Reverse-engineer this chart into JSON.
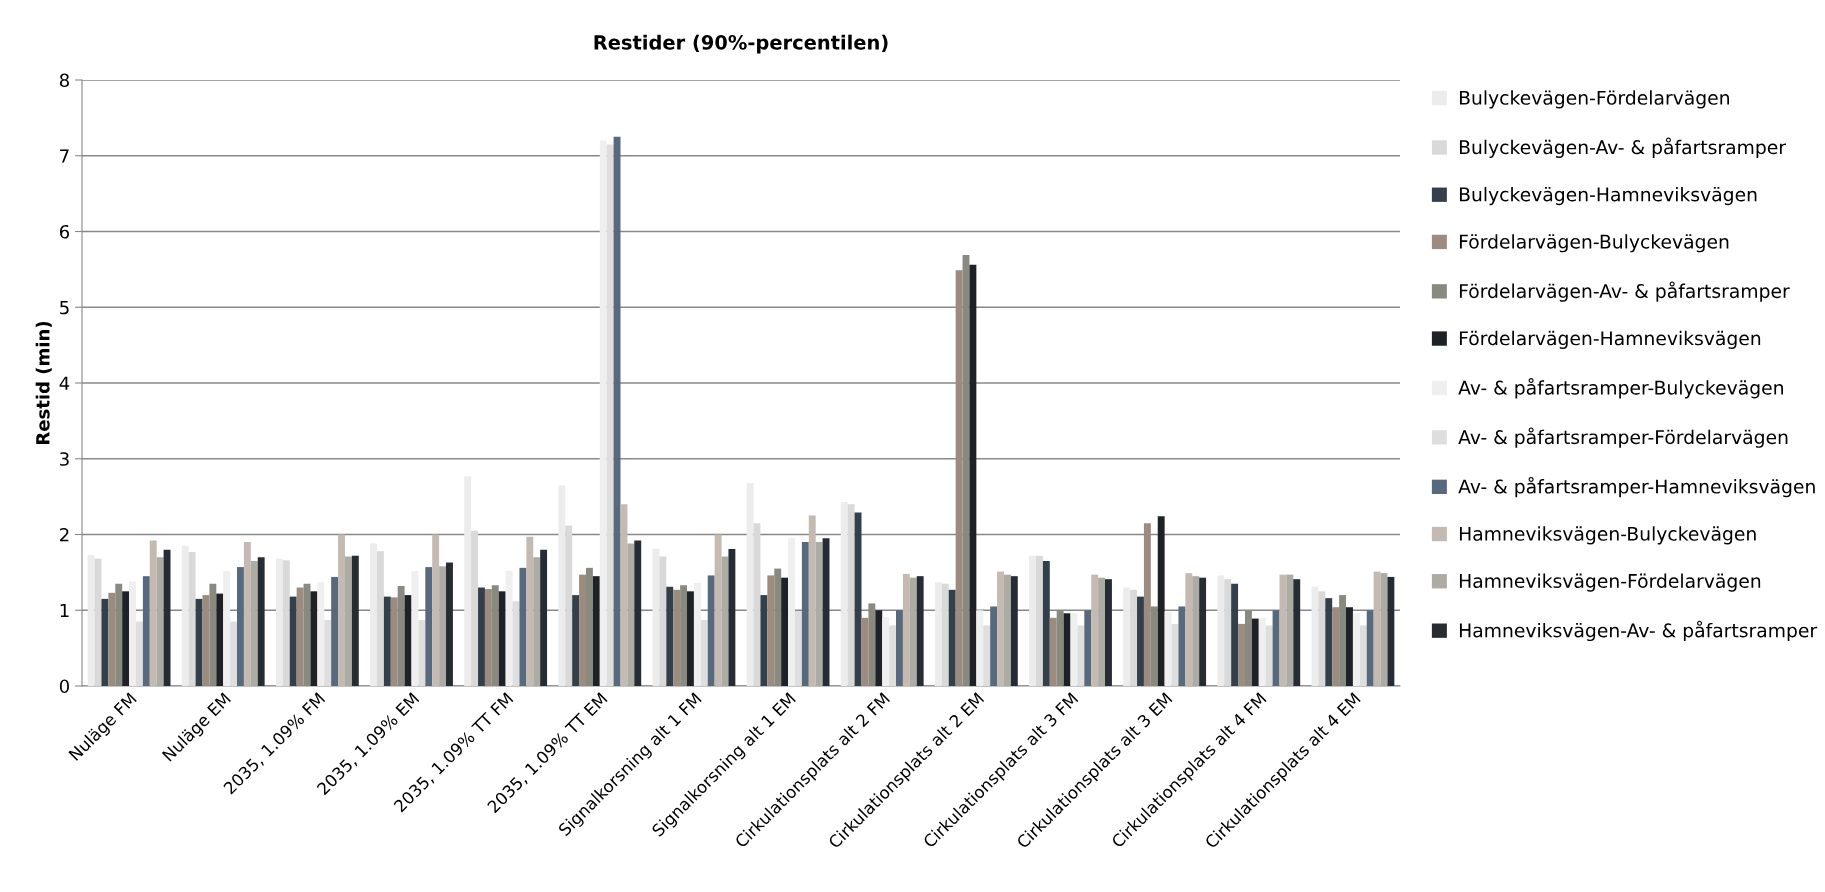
{
  "chart_data": {
    "type": "bar",
    "title": "Restider (90%-percentilen)",
    "ylabel": "Restid (min)",
    "categories": [
      "Nuläge FM",
      "Nuläge EM",
      "2035, 1.09% FM",
      "2035, 1.09% EM",
      "2035, 1.09% TT FM",
      "2035, 1.09% TT EM",
      "Signalkorsning alt 1 FM",
      "Signalkorsning alt 1 EM",
      "Cirkulationsplats alt 2 FM",
      "Cirkulationsplats alt 2 EM",
      "Cirkulationsplats alt 3 FM",
      "Cirkulationsplats alt 3 EM",
      "Cirkulationsplats alt 4 FM",
      "Cirkulationsplats alt 4 EM"
    ],
    "ylim": [
      0,
      8
    ],
    "yticks": [
      0,
      1,
      2,
      3,
      4,
      5,
      6,
      7,
      8
    ],
    "grid": "y",
    "legend": "right",
    "series": [
      {
        "name": "Bulyckevägen-Fördelarvägen",
        "color": "#ececec",
        "values": [
          1.73,
          1.85,
          1.68,
          1.88,
          2.77,
          2.65,
          1.81,
          2.68,
          2.43,
          1.37,
          1.72,
          1.3,
          1.46,
          1.31
        ]
      },
      {
        "name": "Bulyckevägen-Av- & påfartsramper",
        "color": "#d9d9d9",
        "values": [
          1.68,
          1.77,
          1.66,
          1.78,
          2.05,
          2.12,
          1.71,
          2.15,
          2.4,
          1.35,
          1.72,
          1.27,
          1.41,
          1.25
        ]
      },
      {
        "name": "Bulyckevägen-Hamneviksvägen",
        "color": "#333f4a",
        "values": [
          1.15,
          1.15,
          1.18,
          1.18,
          1.3,
          1.2,
          1.31,
          1.2,
          2.29,
          1.27,
          1.65,
          1.18,
          1.35,
          1.16
        ]
      },
      {
        "name": "Fördelarvägen-Bulyckevägen",
        "color": "#9c8c80",
        "values": [
          1.23,
          1.2,
          1.3,
          1.17,
          1.28,
          1.47,
          1.27,
          1.46,
          0.9,
          5.49,
          0.9,
          2.15,
          0.82,
          1.04
        ]
      },
      {
        "name": "Fördelarvägen-Av- & påfartsramper",
        "color": "#888a80",
        "values": [
          1.35,
          1.35,
          1.35,
          1.32,
          1.33,
          1.56,
          1.33,
          1.55,
          1.09,
          5.69,
          0.99,
          1.05,
          1.0,
          1.2
        ]
      },
      {
        "name": "Fördelarvägen-Hamneviksvägen",
        "color": "#1e2227",
        "values": [
          1.25,
          1.22,
          1.25,
          1.2,
          1.25,
          1.45,
          1.25,
          1.43,
          1.0,
          5.56,
          0.96,
          2.24,
          0.89,
          1.04
        ]
      },
      {
        "name": "Av- & påfartsramper-Bulyckevägen",
        "color": "#efefef",
        "values": [
          1.38,
          1.52,
          1.37,
          1.52,
          1.52,
          7.2,
          1.36,
          1.95,
          0.91,
          1.0,
          0.96,
          0.98,
          0.9,
          0.96
        ]
      },
      {
        "name": "Av- & påfartsramper-Fördelarvägen",
        "color": "#dedede",
        "values": [
          0.85,
          0.85,
          0.87,
          0.87,
          1.12,
          7.15,
          0.87,
          0.99,
          0.8,
          0.8,
          0.8,
          0.82,
          0.8,
          0.8
        ]
      },
      {
        "name": "Av- & påfartsramper-Hamneviksvägen",
        "color": "#576a7d",
        "values": [
          1.45,
          1.57,
          1.44,
          1.57,
          1.56,
          7.25,
          1.46,
          1.9,
          1.0,
          1.05,
          1.0,
          1.05,
          1.0,
          1.0
        ]
      },
      {
        "name": "Hamneviksvägen-Bulyckevägen",
        "color": "#c4bab2",
        "values": [
          1.92,
          1.9,
          2.0,
          2.0,
          1.97,
          2.4,
          2.0,
          2.25,
          1.48,
          1.51,
          1.47,
          1.49,
          1.47,
          1.51
        ]
      },
      {
        "name": "Hamneviksvägen-Fördelarvägen",
        "color": "#acaca4",
        "values": [
          1.7,
          1.65,
          1.71,
          1.58,
          1.7,
          1.88,
          1.71,
          1.9,
          1.43,
          1.47,
          1.43,
          1.45,
          1.47,
          1.49
        ]
      },
      {
        "name": "Hamneviksvägen-Av- & påfartsramper",
        "color": "#262c33",
        "values": [
          1.8,
          1.7,
          1.72,
          1.63,
          1.8,
          1.92,
          1.81,
          1.95,
          1.45,
          1.45,
          1.41,
          1.43,
          1.41,
          1.44
        ]
      }
    ]
  }
}
